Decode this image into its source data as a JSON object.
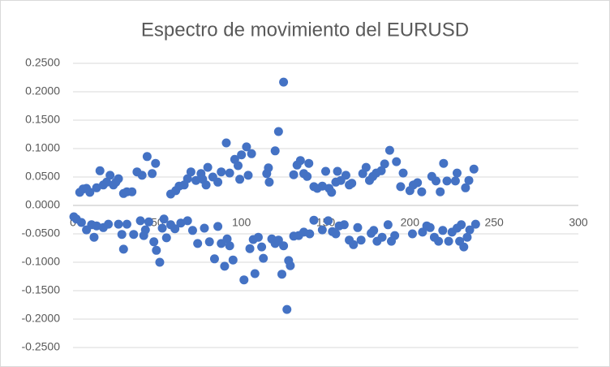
{
  "chart_data": {
    "type": "scatter",
    "title": "Espectro de movimiento del EURUSD",
    "color": "#4472c4",
    "grid": true,
    "xlim": [
      0,
      300
    ],
    "xticks": [
      0,
      50,
      100,
      150,
      200,
      250,
      300
    ],
    "ylim": [
      -0.25,
      0.25
    ],
    "yticks": [
      {
        "value": 0.25,
        "label": "0.2500"
      },
      {
        "value": 0.2,
        "label": "0.2000"
      },
      {
        "value": 0.15,
        "label": "0.1500"
      },
      {
        "value": 0.1,
        "label": "0.1000"
      },
      {
        "value": 0.05,
        "label": "0.0500"
      },
      {
        "value": 0,
        "label": "0.0000"
      },
      {
        "value": -0.05,
        "label": "-0.0500"
      },
      {
        "value": -0.1,
        "label": "-0.1000"
      },
      {
        "value": -0.15,
        "label": "-0.1500"
      },
      {
        "value": -0.2,
        "label": "-0.2000"
      },
      {
        "value": -0.25,
        "label": "-0.2500"
      }
    ],
    "x": [
      4,
      6,
      8,
      10,
      14,
      16,
      18,
      20,
      22,
      24,
      25.5,
      27,
      30,
      32,
      35,
      38,
      41,
      44,
      47,
      49,
      58,
      61,
      63,
      66,
      68,
      70,
      73,
      76,
      77,
      79,
      80,
      83,
      86,
      88,
      91,
      93,
      96,
      98,
      100,
      99,
      103,
      104,
      106,
      115,
      116,
      116.5,
      120,
      122,
      125,
      131,
      133,
      135,
      137,
      139,
      140,
      143,
      145,
      148,
      150,
      152,
      153.5,
      156,
      157,
      159,
      162,
      164,
      165.5,
      172,
      174,
      176,
      178,
      180,
      183,
      185,
      188,
      192,
      194.5,
      196,
      200,
      202,
      204.5,
      207,
      213,
      215.5,
      218,
      220,
      222,
      227,
      228,
      233,
      235,
      238,
      0.5,
      2,
      5,
      8,
      11,
      12.5,
      14,
      18,
      21,
      27,
      29,
      30,
      32,
      36,
      40,
      42,
      43,
      45,
      48,
      49.5,
      51.5,
      53,
      54,
      55.5,
      58,
      60.5,
      64,
      68,
      71,
      74,
      78,
      81,
      84,
      86,
      88,
      90,
      91.5,
      93,
      95,
      101.5,
      105,
      107,
      108,
      110,
      112,
      113,
      118,
      120,
      122,
      124,
      125,
      127,
      128,
      129,
      131,
      134,
      137,
      140.5,
      143,
      148,
      151.5,
      154,
      156,
      158,
      161,
      164,
      166.5,
      169,
      171,
      177,
      178.5,
      180.5,
      183.5,
      187,
      189,
      191,
      201.5,
      207.5,
      210,
      212,
      214.5,
      217,
      219.5,
      223,
      225,
      228,
      229.5,
      230.5,
      232,
      234,
      235.5,
      239
    ],
    "values": [
      0.023,
      0.029,
      0.03,
      0.023,
      0.031,
      0.061,
      0.036,
      0.041,
      0.053,
      0.036,
      0.041,
      0.047,
      0.021,
      0.024,
      0.024,
      0.059,
      0.053,
      0.086,
      0.056,
      0.074,
      0.02,
      0.026,
      0.034,
      0.036,
      0.047,
      0.059,
      0.044,
      0.056,
      0.046,
      0.036,
      0.067,
      0.05,
      0.041,
      0.059,
      0.11,
      0.057,
      0.081,
      0.07,
      0.089,
      0.046,
      0.103,
      0.053,
      0.091,
      0.056,
      0.066,
      0.041,
      0.096,
      0.13,
      0.217,
      0.054,
      0.071,
      0.079,
      0.056,
      0.051,
      0.074,
      0.033,
      0.03,
      0.034,
      0.06,
      0.03,
      0.023,
      0.041,
      0.06,
      0.044,
      0.053,
      0.036,
      0.039,
      0.056,
      0.067,
      0.044,
      0.051,
      0.057,
      0.061,
      0.073,
      0.097,
      0.077,
      0.033,
      0.057,
      0.026,
      0.036,
      0.04,
      0.024,
      0.051,
      0.043,
      0.024,
      0.074,
      0.043,
      0.043,
      0.057,
      0.031,
      0.044,
      0.064,
      -0.02,
      -0.024,
      -0.03,
      -0.043,
      -0.034,
      -0.056,
      -0.036,
      -0.039,
      -0.033,
      -0.033,
      -0.051,
      -0.077,
      -0.033,
      -0.051,
      -0.027,
      -0.053,
      -0.043,
      -0.029,
      -0.064,
      -0.079,
      -0.1,
      -0.04,
      -0.024,
      -0.057,
      -0.034,
      -0.041,
      -0.031,
      -0.027,
      -0.044,
      -0.067,
      -0.04,
      -0.064,
      -0.094,
      -0.037,
      -0.067,
      -0.107,
      -0.059,
      -0.071,
      -0.096,
      -0.131,
      -0.076,
      -0.06,
      -0.12,
      -0.056,
      -0.073,
      -0.093,
      -0.059,
      -0.067,
      -0.061,
      -0.121,
      -0.071,
      -0.183,
      -0.097,
      -0.106,
      -0.054,
      -0.053,
      -0.047,
      -0.05,
      -0.026,
      -0.043,
      -0.027,
      -0.046,
      -0.05,
      -0.036,
      -0.034,
      -0.061,
      -0.069,
      -0.039,
      -0.061,
      -0.049,
      -0.044,
      -0.063,
      -0.056,
      -0.034,
      -0.063,
      -0.053,
      -0.05,
      -0.047,
      -0.036,
      -0.039,
      -0.056,
      -0.063,
      -0.044,
      -0.063,
      -0.047,
      -0.04,
      -0.063,
      -0.034,
      -0.073,
      -0.056,
      -0.043,
      -0.033
    ]
  }
}
